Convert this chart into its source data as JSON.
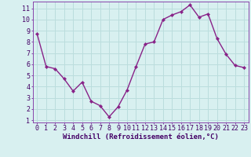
{
  "x": [
    0,
    1,
    2,
    3,
    4,
    5,
    6,
    7,
    8,
    9,
    10,
    11,
    12,
    13,
    14,
    15,
    16,
    17,
    18,
    19,
    20,
    21,
    22,
    23
  ],
  "y": [
    8.7,
    5.8,
    5.6,
    4.7,
    3.6,
    4.4,
    2.7,
    2.3,
    1.3,
    2.2,
    3.7,
    5.8,
    7.8,
    8.0,
    10.0,
    10.4,
    10.7,
    11.3,
    10.2,
    10.5,
    8.3,
    6.9,
    5.9,
    5.7
  ],
  "line_color": "#882288",
  "marker": "D",
  "marker_size": 2.2,
  "line_width": 1.0,
  "bg_color": "#d8f0f0",
  "grid_color": "#bbdddd",
  "xlabel": "Windchill (Refroidissement éolien,°C)",
  "xlabel_fontsize": 6.5,
  "tick_fontsize": 6.0,
  "ylim": [
    0.8,
    11.6
  ],
  "yticks": [
    1,
    2,
    3,
    4,
    5,
    6,
    7,
    8,
    9,
    10,
    11
  ],
  "xlim": [
    -0.5,
    23.5
  ],
  "xticks": [
    0,
    1,
    2,
    3,
    4,
    5,
    6,
    7,
    8,
    9,
    10,
    11,
    12,
    13,
    14,
    15,
    16,
    17,
    18,
    19,
    20,
    21,
    22,
    23
  ],
  "spine_color": "#8844aa"
}
